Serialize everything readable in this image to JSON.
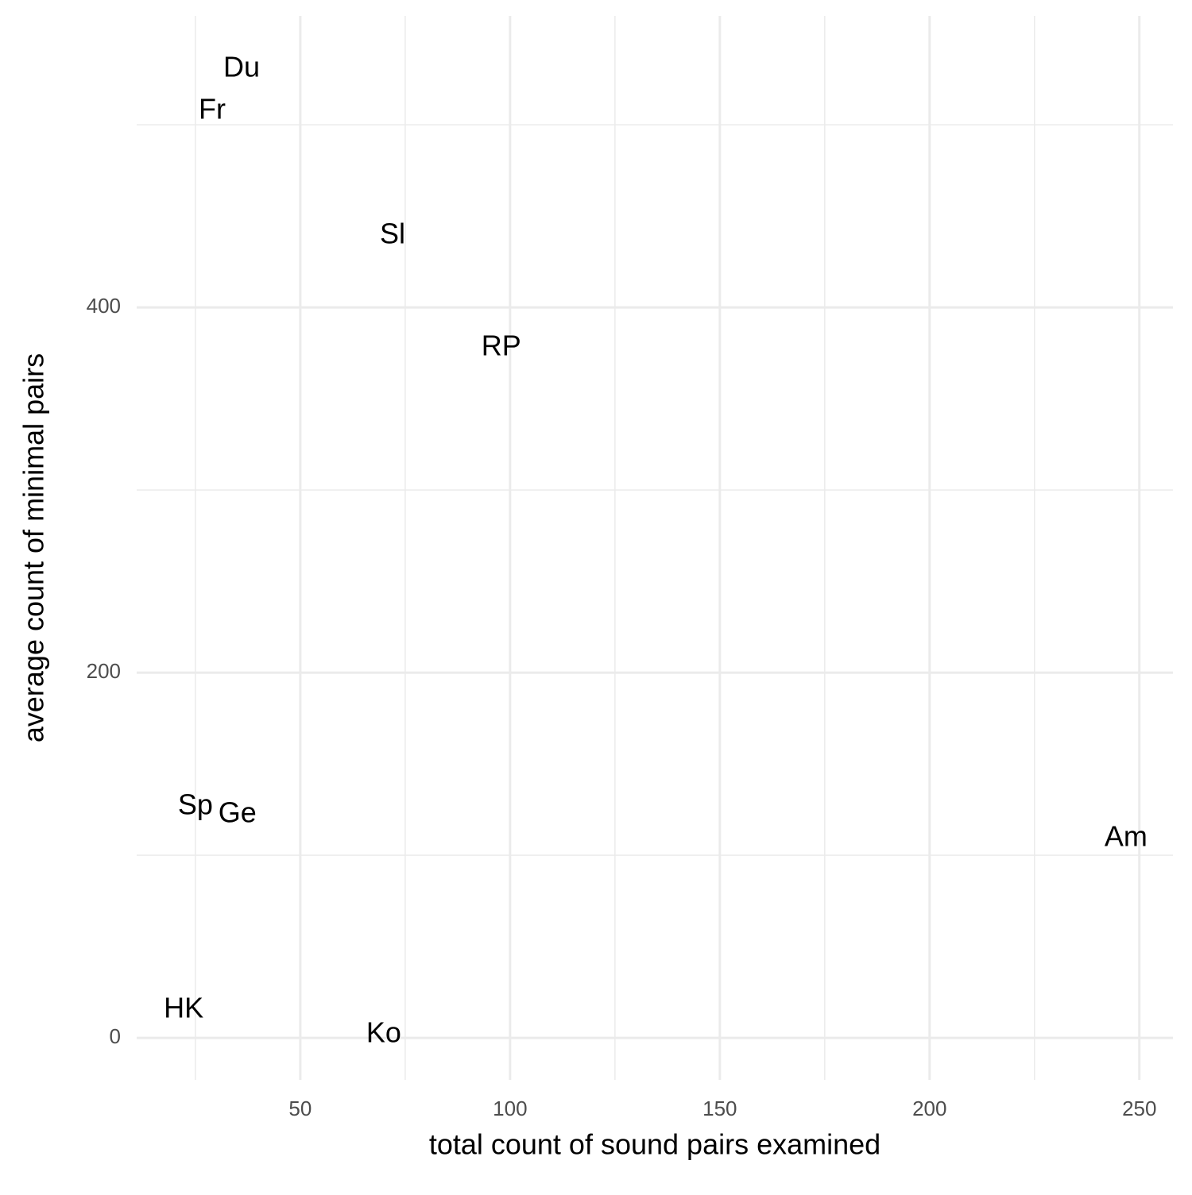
{
  "chart_data": {
    "type": "text-scatter",
    "x_label": "total count of sound pairs examined",
    "y_label": "average count of minimal pairs",
    "labels": [
      "Du",
      "Fr",
      "Sl",
      "RP",
      "Sp",
      "Ge",
      "Am",
      "HK",
      "Ko"
    ],
    "x": [
      36.0,
      29.0,
      72.0,
      97.9,
      25.0,
      35.0,
      246.8,
      22.2,
      69.9
    ],
    "values": [
      530.4,
      507.4,
      439.1,
      377.8,
      126.5,
      122.2,
      109.1,
      15.2,
      1.7
    ],
    "color": "#000000",
    "xlim": [
      11.0,
      258.0
    ],
    "ylim": [
      -23,
      559.6
    ],
    "xticks": [
      50,
      100,
      150,
      200,
      250
    ],
    "yticks": [
      0,
      200,
      400
    ],
    "x_minor_grid": [
      25,
      75,
      125,
      175,
      225
    ],
    "y_minor_grid": [
      100,
      300,
      500
    ],
    "grid": true
  }
}
